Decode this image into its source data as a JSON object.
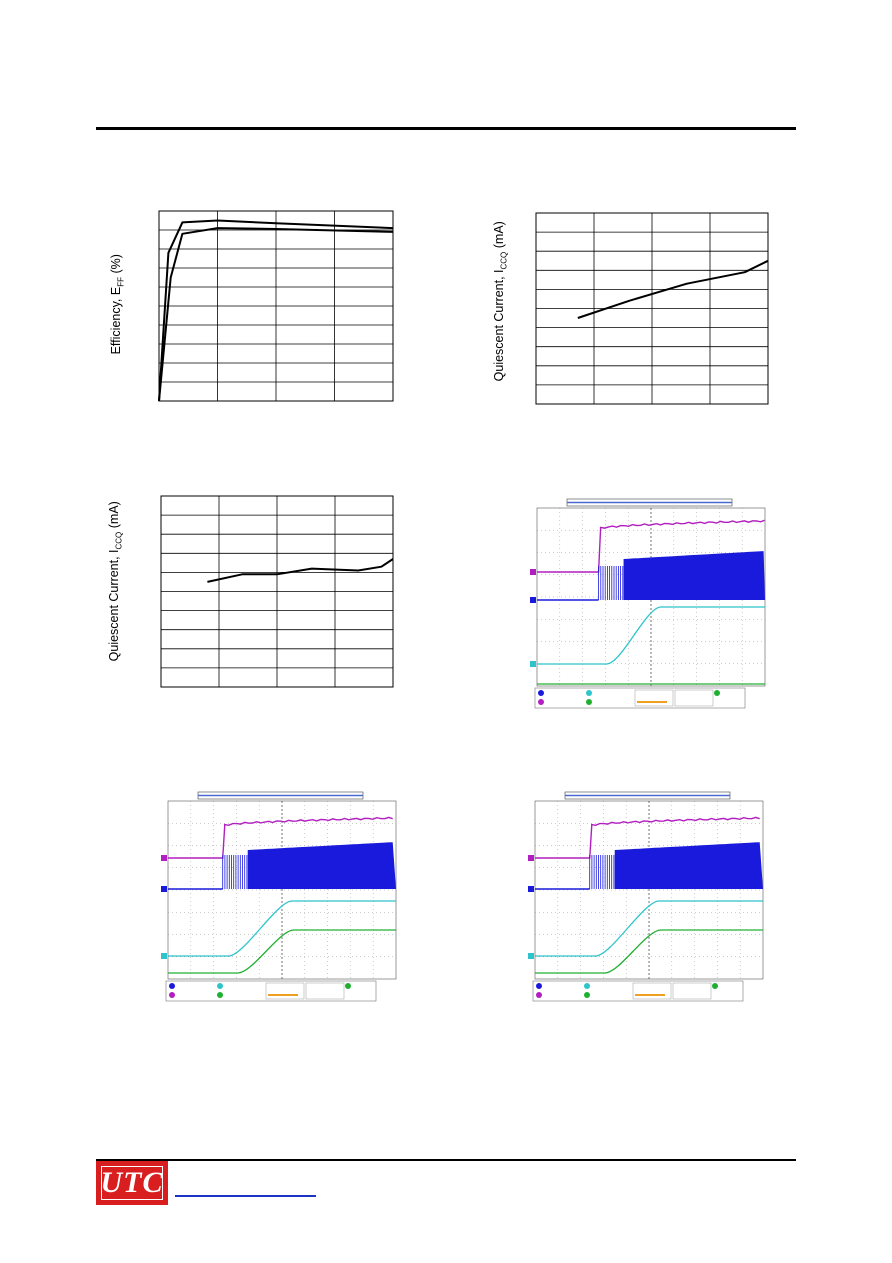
{
  "labels": {
    "efficiency_ylabel": "Efficiency, E",
    "efficiency_ylabel_sub": "FF",
    "efficiency_ylabel_unit": " (%)",
    "quiescent_ylabel": "Quiescent Current, I",
    "quiescent_ylabel_sub": "CCQ",
    "quiescent_ylabel_unit": " (mA)"
  },
  "logo": {
    "text": "UTC"
  },
  "colors": {
    "ch1": "#1a1adc",
    "ch2": "#b21fc0",
    "ch3": "#2ec4cc",
    "ch4": "#20b030",
    "grid": "#9a9a9a",
    "logo": "#d81e1e",
    "link": "#1a33c4"
  },
  "chart_data": [
    {
      "type": "line",
      "id": "efficiency",
      "grid": true,
      "series": [
        {
          "values": [
            [
              0,
              0
            ],
            [
              0.05,
              65
            ],
            [
              0.1,
              88
            ],
            [
              0.25,
              91
            ],
            [
              0.5,
              90.5
            ],
            [
              1.0,
              89
            ]
          ]
        },
        {
          "values": [
            [
              0,
              0
            ],
            [
              0.04,
              78
            ],
            [
              0.1,
              94
            ],
            [
              0.25,
              95
            ],
            [
              0.5,
              93.5
            ],
            [
              1.0,
              91
            ]
          ]
        }
      ]
    },
    {
      "type": "line",
      "id": "quiescent-1",
      "grid": true,
      "series": [
        {
          "values": [
            [
              0.18,
              4.5
            ],
            [
              0.4,
              5.4
            ],
            [
              0.65,
              6.3
            ],
            [
              0.9,
              6.9
            ],
            [
              1.0,
              7.5
            ]
          ]
        }
      ]
    },
    {
      "type": "line",
      "id": "quiescent-2",
      "grid": true,
      "series": [
        {
          "values": [
            [
              0.2,
              5.5
            ],
            [
              0.35,
              5.9
            ],
            [
              0.5,
              5.9
            ],
            [
              0.65,
              6.2
            ],
            [
              0.85,
              6.1
            ],
            [
              0.95,
              6.3
            ],
            [
              1.0,
              6.7
            ]
          ]
        }
      ]
    }
  ]
}
